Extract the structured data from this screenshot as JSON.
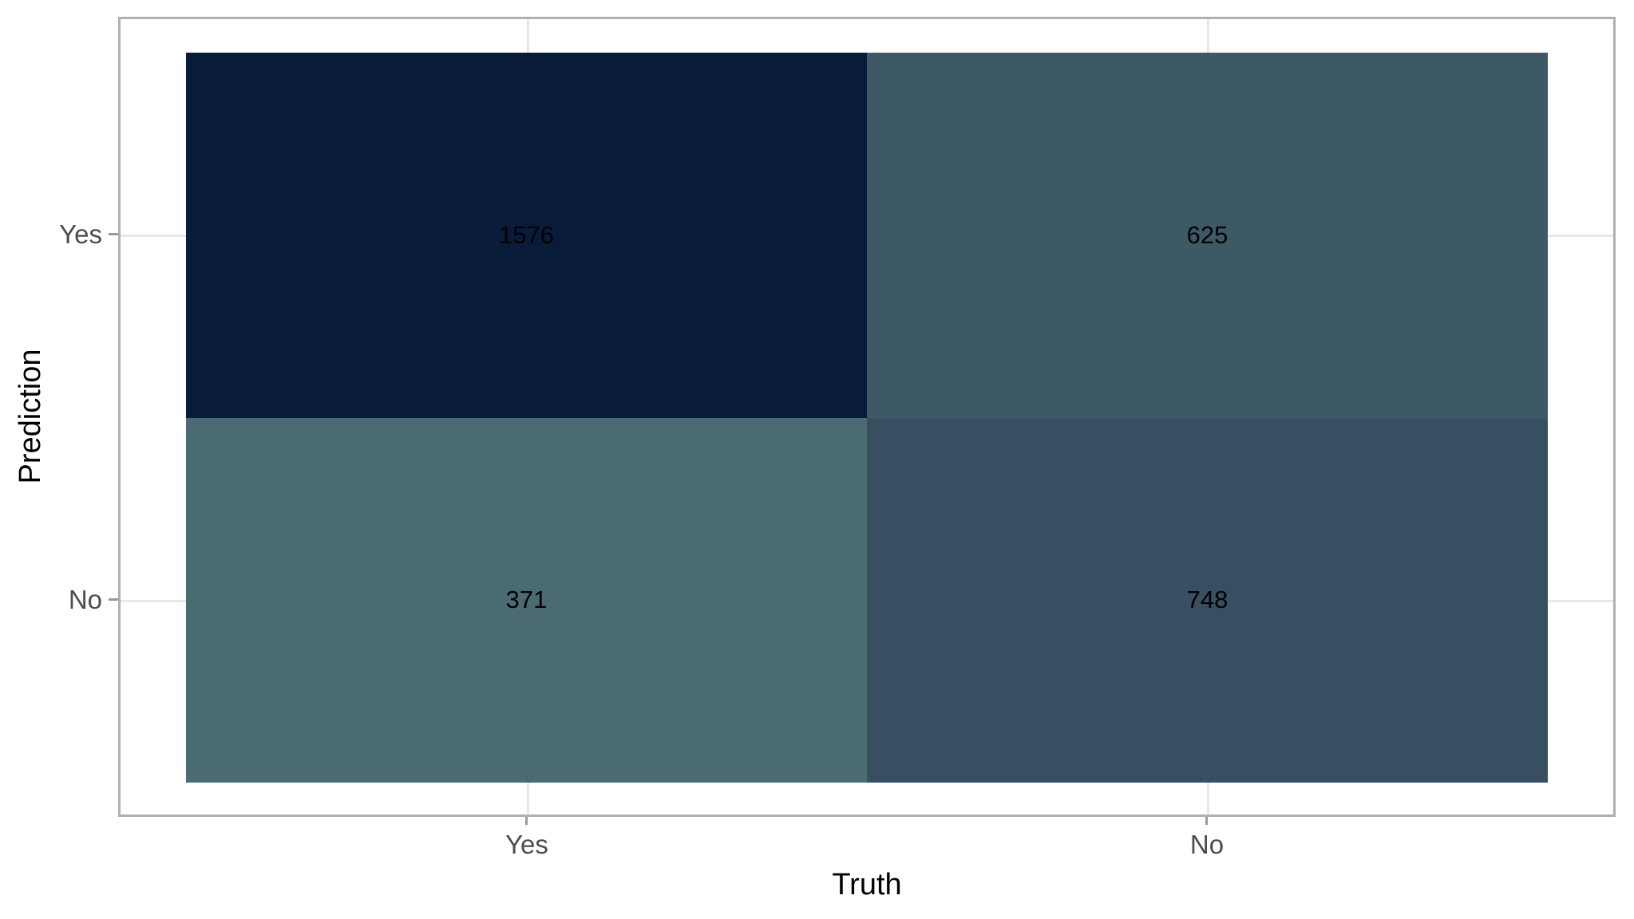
{
  "chart_data": {
    "type": "heatmap",
    "title": "",
    "xlabel": "Truth",
    "ylabel": "Prediction",
    "x_categories": [
      "Yes",
      "No"
    ],
    "y_categories": [
      "Yes",
      "No"
    ],
    "matrix_rows_prediction": [
      "Yes",
      "No"
    ],
    "matrix_cols_truth": [
      "Yes",
      "No"
    ],
    "matrix": [
      [
        1576,
        625
      ],
      [
        371,
        748
      ]
    ],
    "cells": [
      {
        "prediction": "Yes",
        "truth": "Yes",
        "value": 1576,
        "color": "#081b39"
      },
      {
        "prediction": "Yes",
        "truth": "No",
        "value": 625,
        "color": "#3e5966"
      },
      {
        "prediction": "No",
        "truth": "Yes",
        "value": 371,
        "color": "#4a6b72"
      },
      {
        "prediction": "No",
        "truth": "No",
        "value": 748,
        "color": "#384f62"
      }
    ],
    "legend": "none",
    "grid": true,
    "style": {
      "background": "#ffffff",
      "panel_border_color": "#b0b0b0",
      "grid_color": "#e8e8e8",
      "tick_color": "#999999",
      "tick_label_color": "#4d4d4d",
      "axis_title_color": "#000000",
      "value_label_color": "#000000"
    }
  }
}
